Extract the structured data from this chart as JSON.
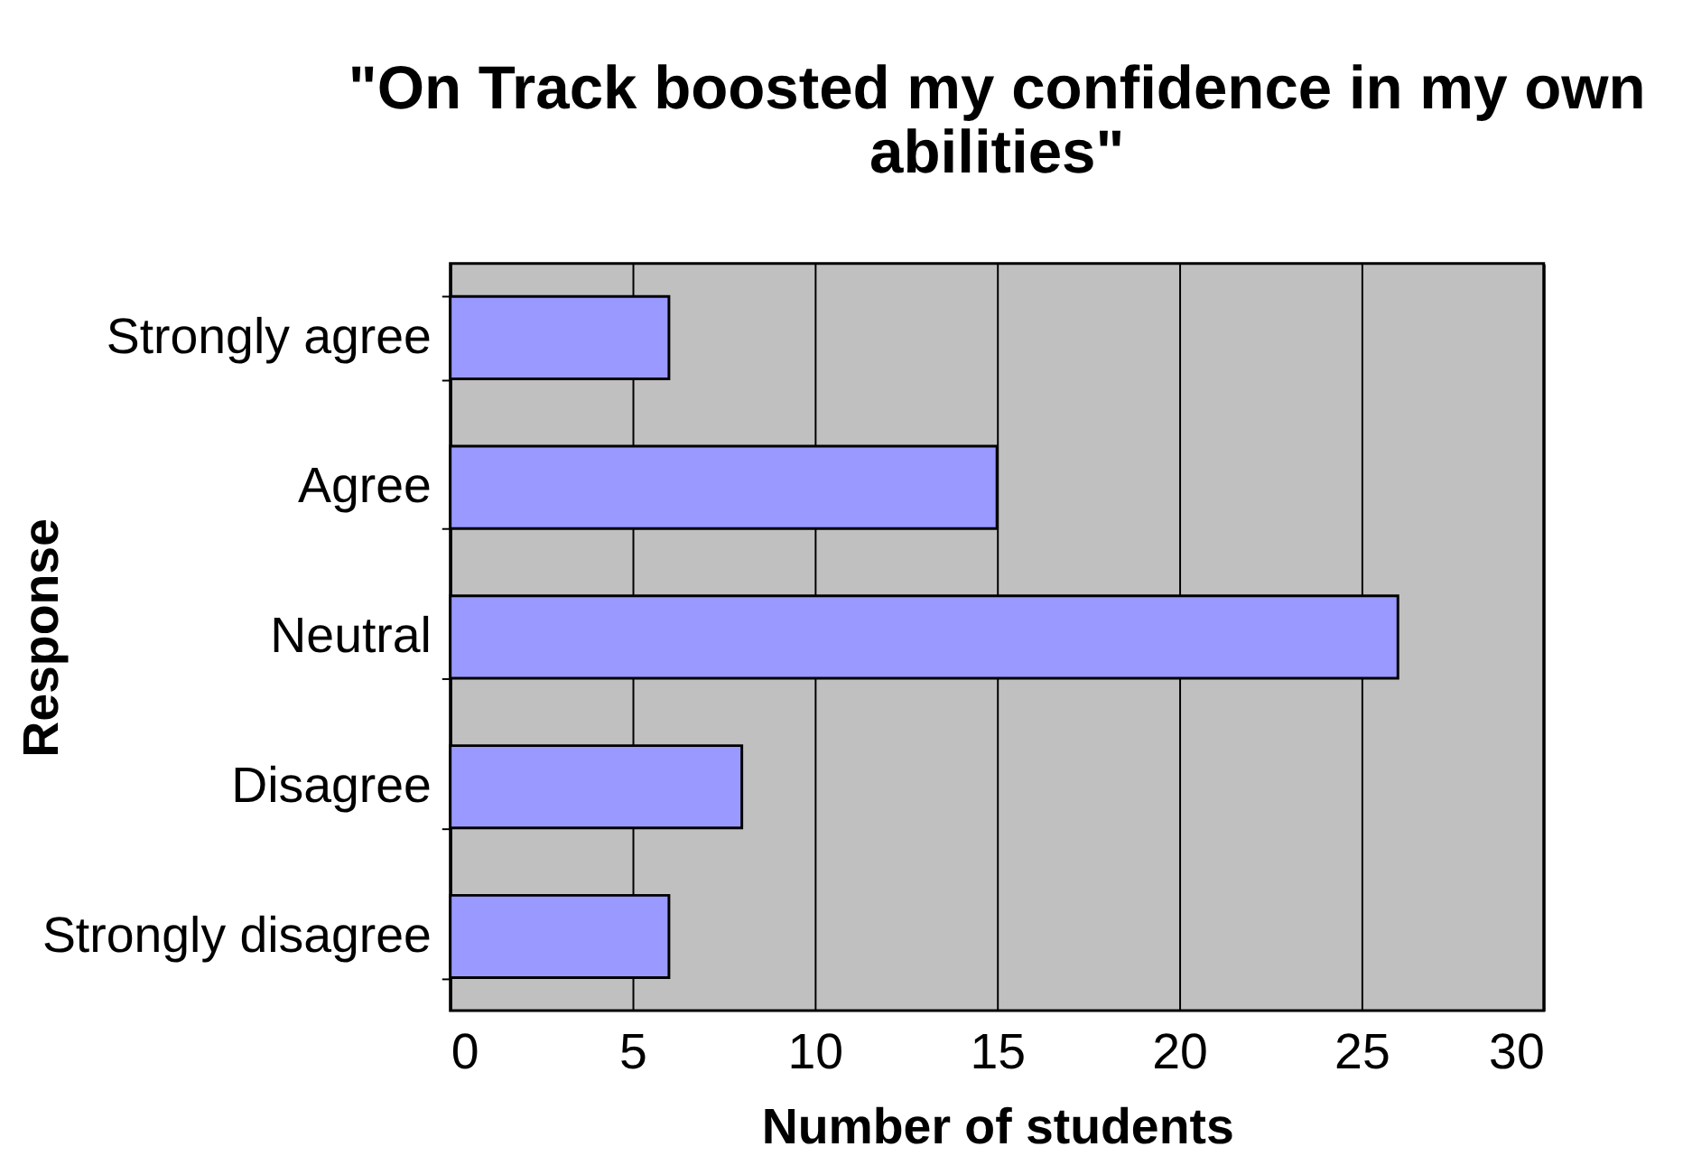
{
  "chart_data": {
    "type": "bar",
    "orientation": "horizontal",
    "title": "\"On Track boosted my confidence in my own abilities\"",
    "xlabel": "Number of students",
    "ylabel": "Response",
    "categories": [
      "Strongly agree",
      "Agree",
      "Neutral",
      "Disagree",
      "Strongly disagree"
    ],
    "values": [
      6,
      15,
      26,
      8,
      6
    ],
    "color": "#9999ff",
    "xlim": [
      0,
      30
    ],
    "xticks": [
      0,
      5,
      10,
      15,
      20,
      25,
      30
    ],
    "grid": "x"
  }
}
